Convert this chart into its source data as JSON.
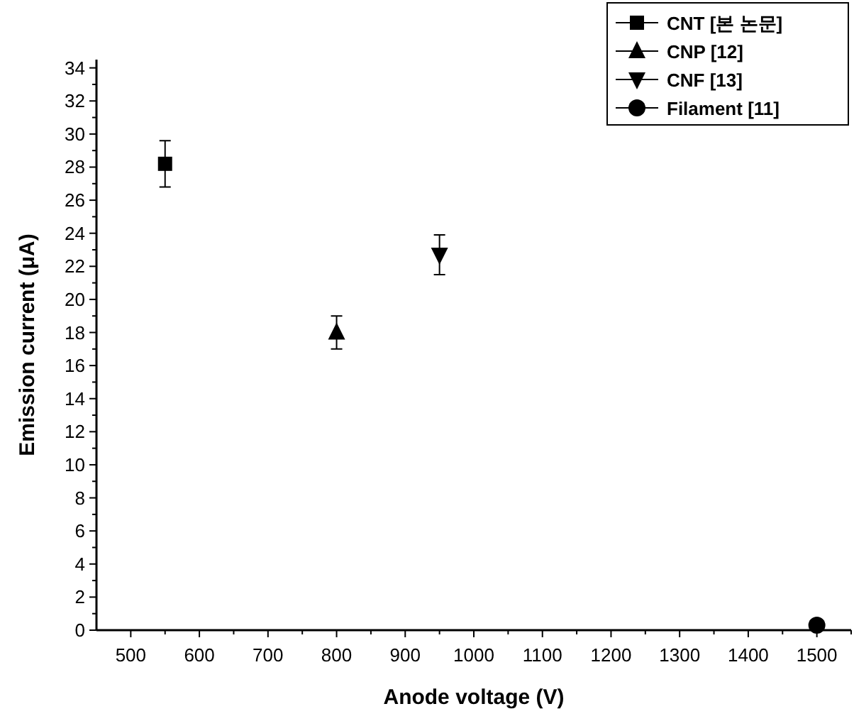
{
  "chart_data": {
    "type": "scatter",
    "xlabel": "Anode voltage (V)",
    "ylabel": "Emission current (μA)",
    "xlim": [
      450,
      1550
    ],
    "ylim": [
      0,
      34.5
    ],
    "xticks": [
      500,
      600,
      700,
      800,
      900,
      1000,
      1100,
      1200,
      1300,
      1400,
      1500
    ],
    "yticks": [
      0,
      2,
      4,
      6,
      8,
      10,
      12,
      14,
      16,
      18,
      20,
      22,
      24,
      26,
      28,
      30,
      32,
      34
    ],
    "legend": "top right",
    "grid": false,
    "series": [
      {
        "name": "CNT [본 논문]",
        "color": "#000000",
        "marker": "square",
        "x": [
          550
        ],
        "values": [
          28.2
        ],
        "errors": [
          1.4
        ]
      },
      {
        "name": "CNP [12]",
        "color": "#000000",
        "marker": "triangle",
        "x": [
          800
        ],
        "values": [
          18
        ],
        "errors": [
          1
        ]
      },
      {
        "name": "CNF [13]",
        "color": "#000000",
        "marker": "triangle-down",
        "x": [
          950
        ],
        "values": [
          22.7
        ],
        "errors": [
          1.2
        ]
      },
      {
        "name": "Filament [11]",
        "color": "#000000",
        "marker": "circle",
        "x": [
          1500
        ],
        "values": [
          0.3
        ]
      }
    ]
  }
}
